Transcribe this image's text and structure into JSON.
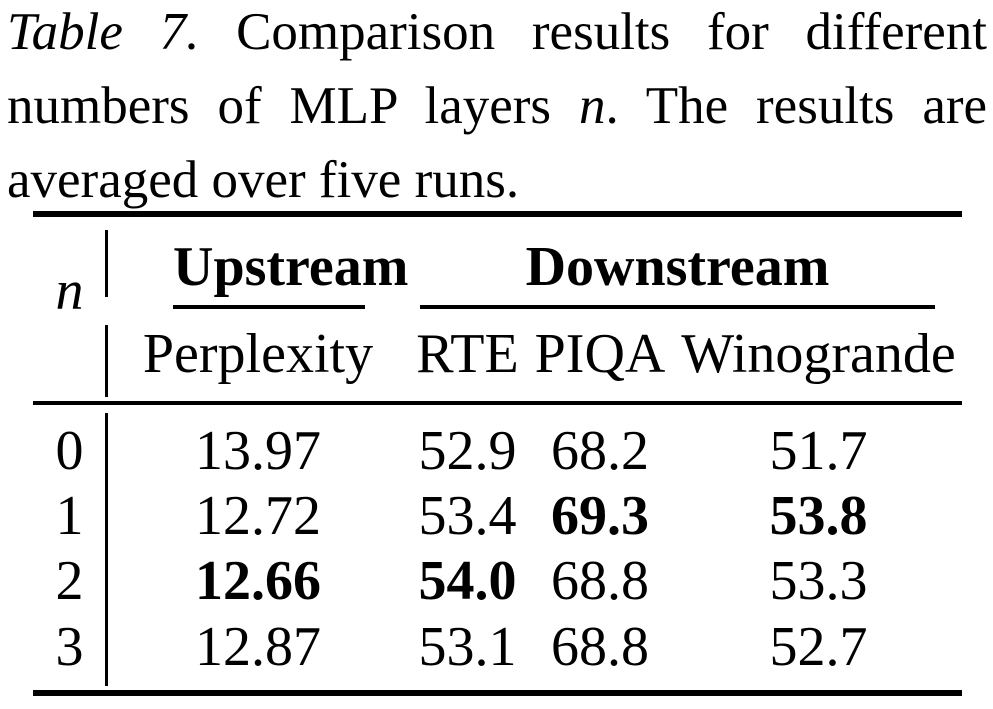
{
  "caption": {
    "label": "Table 7.",
    "line1_rest": "Comparison results for different",
    "line2_before": "numbers of MLP layers",
    "line2_math": "n",
    "line2_after": ". The results are",
    "line3": "averaged over five runs."
  },
  "table": {
    "row_header": "n",
    "group_headers": {
      "upstream": "Upstream",
      "downstream": "Downstream"
    },
    "column_headers": {
      "perplexity": "Perplexity",
      "rte": "RTE",
      "piqa": "PIQA",
      "winogrande": "Winogrande"
    },
    "rows": [
      {
        "n": "0",
        "perplexity": "13.97",
        "rte": "52.9",
        "piqa": "68.2",
        "winogrande": "51.7",
        "bold_cells": []
      },
      {
        "n": "1",
        "perplexity": "12.72",
        "rte": "53.4",
        "piqa": "69.3",
        "winogrande": "53.8",
        "bold_cells": [
          "piqa",
          "winogrande"
        ]
      },
      {
        "n": "2",
        "perplexity": "12.66",
        "rte": "54.0",
        "piqa": "68.8",
        "winogrande": "53.3",
        "bold_cells": [
          "perplexity",
          "rte"
        ]
      },
      {
        "n": "3",
        "perplexity": "12.87",
        "rte": "53.1",
        "piqa": "68.8",
        "winogrande": "52.7",
        "bold_cells": []
      }
    ]
  },
  "colors": {
    "text": "#000000",
    "background": "#ffffff",
    "rule": "#000000"
  }
}
